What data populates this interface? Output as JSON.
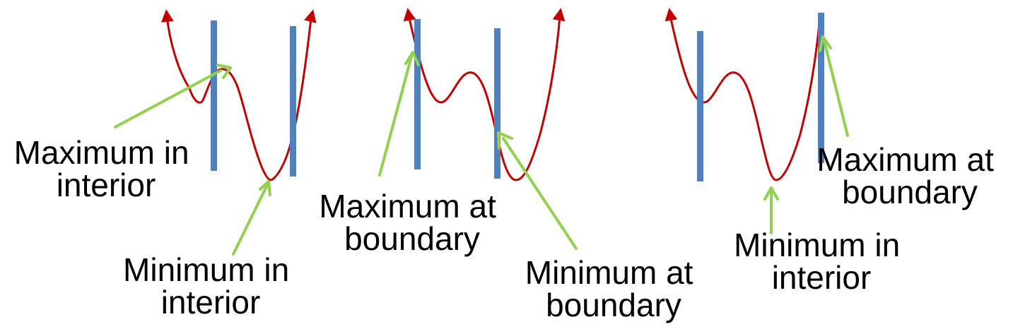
{
  "colors": {
    "curve": "#c00000",
    "boundary": "#4f81bd",
    "arrow": "#92d050",
    "text": "#000000",
    "background": "#ffffff"
  },
  "panels": [
    {
      "labels": [
        {
          "line1": "Maximum in",
          "line2": "interior"
        },
        {
          "line1": "Minimum in",
          "line2": "interior"
        }
      ]
    },
    {
      "labels": [
        {
          "line1": "Maximum at",
          "line2": "boundary"
        },
        {
          "line1": "Minimum at",
          "line2": "boundary"
        }
      ]
    },
    {
      "labels": [
        {
          "line1": "Minimum in",
          "line2": "interior"
        },
        {
          "line1": "Maximum at",
          "line2": "boundary"
        }
      ]
    }
  ]
}
